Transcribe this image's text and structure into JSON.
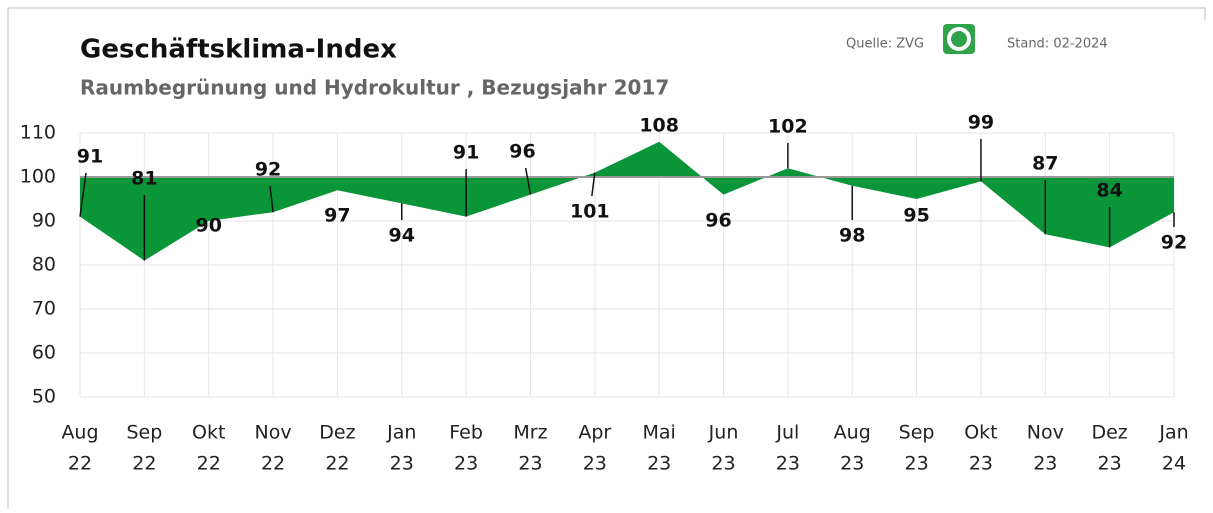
{
  "chart_data": {
    "type": "area",
    "title": "Geschäftsklima-Index",
    "subtitle": "Raumbegrünung und Hydrokultur , Bezugsjahr 2017",
    "source": "Quelle: ZVG",
    "date": "Stand: 02-2024",
    "categories": [
      [
        "Aug",
        "22"
      ],
      [
        "Sep",
        "22"
      ],
      [
        "Okt",
        "22"
      ],
      [
        "Nov",
        "22"
      ],
      [
        "Dez",
        "22"
      ],
      [
        "Jan",
        "23"
      ],
      [
        "Feb",
        "23"
      ],
      [
        "Mrz",
        "23"
      ],
      [
        "Apr",
        "23"
      ],
      [
        "Mai",
        "23"
      ],
      [
        "Jun",
        "23"
      ],
      [
        "Jul",
        "23"
      ],
      [
        "Aug",
        "23"
      ],
      [
        "Sep",
        "23"
      ],
      [
        "Okt",
        "23"
      ],
      [
        "Nov",
        "23"
      ],
      [
        "Dez",
        "23"
      ],
      [
        "Jan",
        "24"
      ]
    ],
    "values": [
      91,
      81,
      90,
      92,
      97,
      94,
      91,
      96,
      101,
      108,
      96,
      102,
      98,
      95,
      99,
      87,
      84,
      92
    ],
    "color": "#0a9538",
    "reference_line": 100,
    "ylim": [
      50,
      110
    ],
    "yticks": [
      50,
      60,
      70,
      80,
      90,
      100,
      110
    ],
    "grid": true
  }
}
